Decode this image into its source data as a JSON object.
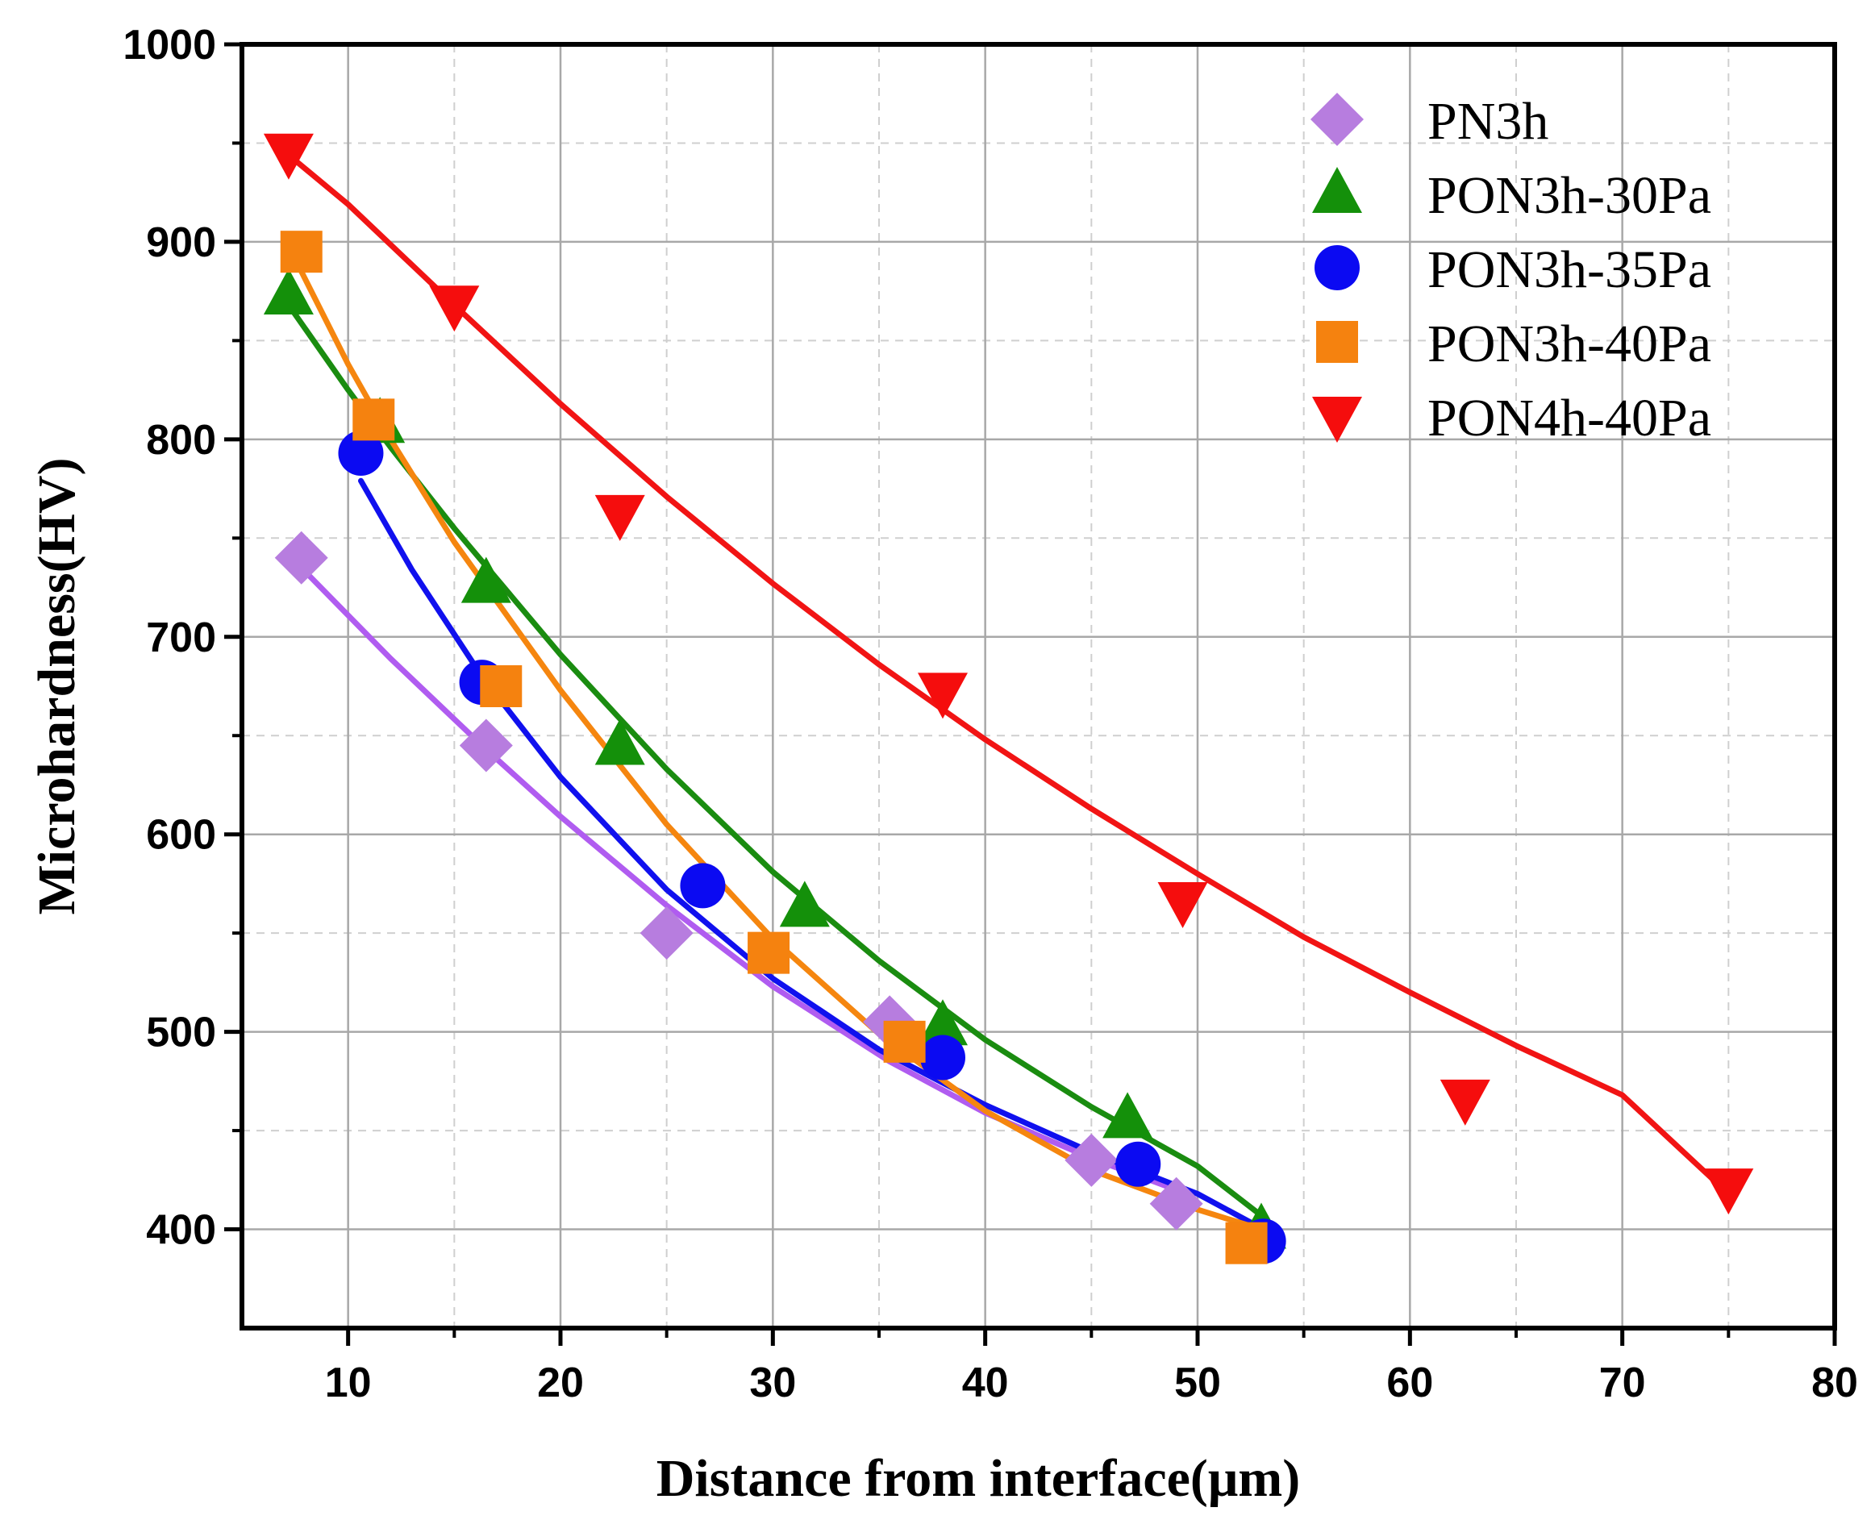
{
  "chart_data": {
    "type": "scatter",
    "title": "",
    "xlabel": "Distance from interface(μm)",
    "ylabel": "Microhardness(HV)",
    "xlim": [
      5,
      80
    ],
    "ylim": [
      350,
      1000
    ],
    "xticks": [
      10,
      20,
      30,
      40,
      50,
      60,
      70,
      80
    ],
    "yticks": [
      400,
      500,
      600,
      700,
      800,
      900,
      1000
    ],
    "grid": true,
    "legend_position": "top-right",
    "series": [
      {
        "name": "PN3h",
        "marker": "diamond",
        "color": "#b77ddf",
        "fit_color": "#b05cf0",
        "x": [
          7.8,
          16.5,
          25,
          35.5,
          45,
          49
        ],
        "y": [
          740,
          645,
          550,
          505,
          435,
          413
        ],
        "fit_x": [
          7.8,
          12,
          16.5,
          20,
          25,
          30,
          35.5,
          40,
          45,
          49
        ],
        "fit_y": [
          735,
          689,
          643,
          609,
          564,
          523,
          485,
          459,
          436,
          420
        ]
      },
      {
        "name": "PON3h-30Pa",
        "marker": "triangle-up",
        "color": "#14900a",
        "fit_color": "#1a8c10",
        "x": [
          7.2,
          11.5,
          16.5,
          22.8,
          31.5,
          38,
          46.7,
          53
        ],
        "y": [
          873,
          808,
          727,
          645,
          563,
          503,
          456,
          400
        ],
        "fit_x": [
          7.2,
          10,
          12,
          15,
          20,
          25,
          30,
          35,
          40,
          45,
          50,
          53
        ],
        "fit_y": [
          868,
          825,
          796,
          755,
          691,
          633,
          581,
          536,
          496,
          462,
          432,
          407
        ]
      },
      {
        "name": "PON3h-35Pa",
        "marker": "circle",
        "color": "#0b0af2",
        "fit_color": "#1010ee",
        "x": [
          10.6,
          16.3,
          26.7,
          38,
          47.2,
          53.1
        ],
        "y": [
          793,
          677,
          574,
          487,
          433,
          394
        ],
        "fit_x": [
          10.6,
          13,
          16.3,
          20,
          25,
          30,
          35,
          40,
          45,
          50,
          53.1
        ],
        "fit_y": [
          779,
          734,
          680,
          629,
          572,
          527,
          491,
          463,
          439,
          418,
          400
        ]
      },
      {
        "name": "PON3h-40Pa",
        "marker": "square",
        "color": "#f5820f",
        "fit_color": "#f5860f",
        "x": [
          7.8,
          11.2,
          17.2,
          29.8,
          36.2,
          52.3
        ],
        "y": [
          895,
          810,
          675,
          540,
          495,
          393
        ],
        "fit_x": [
          7.8,
          10,
          12,
          15,
          20,
          25,
          30,
          35,
          40,
          45,
          50,
          53
        ],
        "fit_y": [
          885,
          838,
          800,
          748,
          673,
          605,
          547,
          499,
          460,
          430,
          410,
          400
        ]
      },
      {
        "name": "PON4h-40Pa",
        "marker": "triangle-down",
        "color": "#f50d0d",
        "fit_color": "#f11414",
        "x": [
          7.2,
          15,
          22.8,
          38,
          49.3,
          62.6,
          75
        ],
        "y": [
          945,
          868,
          762,
          672,
          566,
          466,
          421
        ],
        "fit_x": [
          7.2,
          10,
          15,
          20,
          25,
          30,
          35,
          40,
          45,
          50,
          55,
          60,
          65,
          70,
          75
        ],
        "fit_y": [
          944,
          919,
          868,
          818,
          771,
          727,
          686,
          648,
          613,
          580,
          548,
          520,
          493,
          468,
          418
        ]
      }
    ]
  }
}
